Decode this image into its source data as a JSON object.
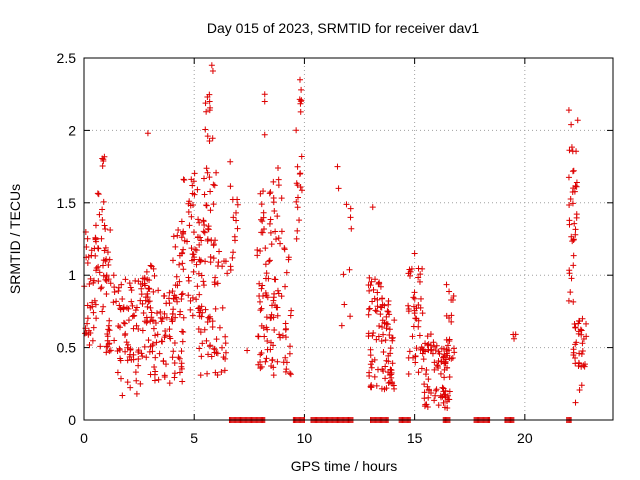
{
  "chart_data": {
    "type": "scatter",
    "title": "Day 015 of 2023, SRMTID for receiver dav1",
    "xlabel": "GPS time / hours",
    "ylabel": "SRMTID / TECUs",
    "xlim": [
      0,
      24
    ],
    "ylim": [
      0,
      2.5
    ],
    "xticks": [
      0,
      5,
      10,
      15,
      20
    ],
    "xtick_labels": [
      "0",
      "5",
      "10",
      "15",
      "20"
    ],
    "yticks": [
      0,
      0.5,
      1,
      1.5,
      2,
      2.5
    ],
    "ytick_labels": [
      "0",
      "0.5",
      "1",
      "1.5",
      "2",
      "2.5"
    ],
    "grid": true,
    "marker": "+",
    "color": "#dd0000",
    "series": [
      {
        "name": "SRMTID",
        "clusters": [
          {
            "x": [
              0.0,
              1.2
            ],
            "y": [
              0.5,
              1.3
            ],
            "n": 60
          },
          {
            "x": [
              0.4,
              1.2
            ],
            "y": [
              1.0,
              1.6
            ],
            "n": 20
          },
          {
            "x": [
              0.8,
              0.95
            ],
            "y": [
              1.75,
              1.9
            ],
            "n": 5
          },
          {
            "x": [
              1.0,
              3.0
            ],
            "y": [
              0.4,
              1.0
            ],
            "n": 90
          },
          {
            "x": [
              1.5,
              2.6
            ],
            "y": [
              0.15,
              0.5
            ],
            "n": 15
          },
          {
            "x": [
              2.5,
              3.3
            ],
            "y": [
              0.7,
              1.1
            ],
            "n": 20
          },
          {
            "x": [
              3.0,
              4.5
            ],
            "y": [
              0.25,
              0.9
            ],
            "n": 80
          },
          {
            "x": [
              4.0,
              5.5
            ],
            "y": [
              0.7,
              1.4
            ],
            "n": 70
          },
          {
            "x": [
              4.5,
              5.2
            ],
            "y": [
              1.4,
              1.75
            ],
            "n": 15
          },
          {
            "x": [
              5.2,
              6.5
            ],
            "y": [
              0.3,
              1.2
            ],
            "n": 60
          },
          {
            "x": [
              5.4,
              6.0
            ],
            "y": [
              1.2,
              1.8
            ],
            "n": 25
          },
          {
            "x": [
              5.5,
              5.9
            ],
            "y": [
              1.9,
              2.25
            ],
            "n": 10
          },
          {
            "x": [
              6.6,
              7.0
            ],
            "y": [
              0.9,
              1.8
            ],
            "n": 15
          },
          {
            "x": [
              7.8,
              9.4
            ],
            "y": [
              0.3,
              1.2
            ],
            "n": 90
          },
          {
            "x": [
              8.0,
              9.0
            ],
            "y": [
              1.2,
              1.75
            ],
            "n": 30
          },
          {
            "x": [
              9.6,
              9.9
            ],
            "y": [
              1.2,
              2.3
            ],
            "n": 20
          },
          {
            "x": [
              11.6,
              12.2
            ],
            "y": [
              0.5,
              1.5
            ],
            "n": 8
          },
          {
            "x": [
              12.9,
              13.5
            ],
            "y": [
              0.2,
              1.0
            ],
            "n": 45
          },
          {
            "x": [
              13.5,
              14.1
            ],
            "y": [
              0.2,
              0.85
            ],
            "n": 55
          },
          {
            "x": [
              14.7,
              15.4
            ],
            "y": [
              0.3,
              1.05
            ],
            "n": 45
          },
          {
            "x": [
              15.4,
              16.6
            ],
            "y": [
              0.08,
              0.6
            ],
            "n": 90
          },
          {
            "x": [
              16.4,
              16.8
            ],
            "y": [
              0.4,
              1.0
            ],
            "n": 15
          },
          {
            "x": [
              19.4,
              19.6
            ],
            "y": [
              0.55,
              0.62
            ],
            "n": 3
          },
          {
            "x": [
              22.0,
              22.4
            ],
            "y": [
              0.8,
              1.9
            ],
            "n": 35
          },
          {
            "x": [
              22.2,
              22.8
            ],
            "y": [
              0.2,
              0.7
            ],
            "n": 35
          }
        ],
        "points": [
          {
            "x": 2.9,
            "y": 1.98
          },
          {
            "x": 5.8,
            "y": 2.45
          },
          {
            "x": 5.85,
            "y": 2.41
          },
          {
            "x": 5.7,
            "y": 2.2
          },
          {
            "x": 8.2,
            "y": 2.25
          },
          {
            "x": 8.2,
            "y": 2.2
          },
          {
            "x": 9.8,
            "y": 2.35
          },
          {
            "x": 9.85,
            "y": 2.28
          },
          {
            "x": 8.2,
            "y": 1.97
          },
          {
            "x": 11.5,
            "y": 1.75
          },
          {
            "x": 11.55,
            "y": 1.6
          },
          {
            "x": 12.1,
            "y": 1.46
          },
          {
            "x": 13.1,
            "y": 1.47
          },
          {
            "x": 15.0,
            "y": 1.15
          },
          {
            "x": 22.0,
            "y": 2.14
          },
          {
            "x": 22.4,
            "y": 2.07
          },
          {
            "x": 22.1,
            "y": 2.04
          },
          {
            "x": 22.3,
            "y": 0.12
          },
          {
            "x": 15.6,
            "y": 0.09
          },
          {
            "x": 7.4,
            "y": 0.48
          }
        ],
        "zero_intervals": [
          [
            6.6,
            8.2
          ],
          [
            9.5,
            10.0
          ],
          [
            10.3,
            12.2
          ],
          [
            13.0,
            13.8
          ],
          [
            14.3,
            14.8
          ],
          [
            16.3,
            16.6
          ],
          [
            17.7,
            18.4
          ],
          [
            19.1,
            19.5
          ],
          [
            21.9,
            22.1
          ]
        ]
      }
    ]
  }
}
